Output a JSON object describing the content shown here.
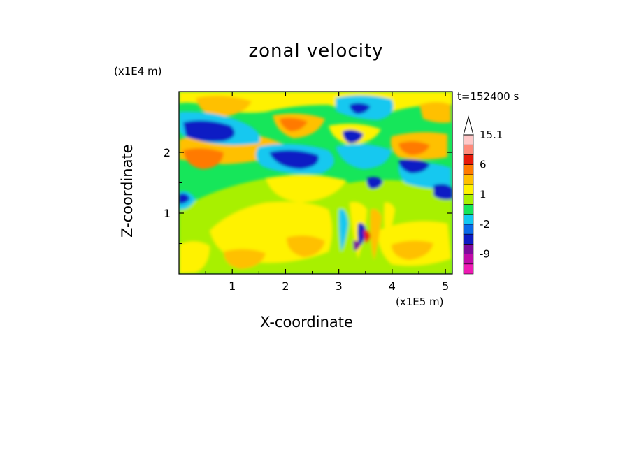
{
  "chart_data": {
    "type": "heatmap",
    "title": "zonal velocity",
    "xlabel": "X-coordinate",
    "ylabel": "Z-coordinate",
    "x_unit": "(x1E5 m)",
    "y_unit": "(x1E4 m)",
    "timestamp": "t=152400 s",
    "xlim": [
      0,
      5.13
    ],
    "ylim": [
      0,
      3.0
    ],
    "x_ticks": [
      1,
      2,
      3,
      4,
      5
    ],
    "y_ticks": [
      1,
      2
    ],
    "x_tick_labels": [
      "1",
      "2",
      "3",
      "4",
      "5"
    ],
    "y_tick_labels": [
      "1",
      "2"
    ],
    "colorbar": {
      "levels": [
        -15,
        -12,
        -9,
        -6,
        -4,
        -2,
        -1,
        0,
        1,
        2,
        3,
        6,
        9,
        12,
        15.1
      ],
      "colors": [
        "#ee1ab4",
        "#c00aa8",
        "#7e0a9c",
        "#0e1cc4",
        "#0a6ae8",
        "#12c8f0",
        "#16e65a",
        "#a8f000",
        "#fff200",
        "#ffc000",
        "#ff7a00",
        "#e61a0a",
        "#ff8a7a",
        "#ffc8c8"
      ],
      "tick_labels": [
        "15.1",
        "6",
        "1",
        "-2",
        "-9"
      ],
      "tick_values": [
        15.1,
        6,
        1,
        -2,
        -9
      ]
    },
    "grid": false
  }
}
